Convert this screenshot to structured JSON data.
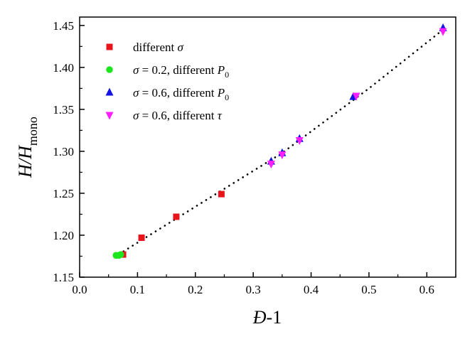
{
  "chart_data": {
    "type": "scatter",
    "xlabel": "Đ-1",
    "ylabel": "H/Hmono",
    "xlabel_parts": {
      "symbol": "Đ",
      "suffix": "-1"
    },
    "ylabel_parts": {
      "main": "H/H",
      "subscript": "mono"
    },
    "xlim": [
      0.0,
      0.65
    ],
    "ylim": [
      1.15,
      1.46
    ],
    "x_ticks": [
      "0.0",
      "0.1",
      "0.2",
      "0.3",
      "0.4",
      "0.5",
      "0.6"
    ],
    "y_ticks": [
      "1.15",
      "1.20",
      "1.25",
      "1.30",
      "1.35",
      "1.40",
      "1.45"
    ],
    "grid": false,
    "legend_position": "top-left",
    "series": [
      {
        "name": "different σ",
        "legend": {
          "text": "different ",
          "symbol": "σ",
          "sub": ""
        },
        "marker": "square",
        "color": "#e8141b",
        "points": [
          [
            0.075,
            1.177
          ],
          [
            0.107,
            1.197
          ],
          [
            0.167,
            1.222
          ],
          [
            0.245,
            1.249
          ]
        ]
      },
      {
        "name": "σ = 0.2, different P0",
        "legend": {
          "text": "σ = 0.2, different ",
          "symbol": "P",
          "sub": "0"
        },
        "marker": "circle",
        "color": "#1ee61e",
        "points": [
          [
            0.063,
            1.176
          ],
          [
            0.068,
            1.176
          ],
          [
            0.071,
            1.177
          ]
        ]
      },
      {
        "name": "σ = 0.6, different P0",
        "legend": {
          "text": "σ = 0.6, different ",
          "symbol": "P",
          "sub": "0"
        },
        "marker": "triangle-up",
        "color": "#1414e6",
        "points": [
          [
            0.331,
            1.288
          ],
          [
            0.35,
            1.298
          ],
          [
            0.38,
            1.315
          ],
          [
            0.473,
            1.365
          ],
          [
            0.628,
            1.447
          ]
        ]
      },
      {
        "name": "σ = 0.6, different τ",
        "legend": {
          "text": "σ = 0.6, different ",
          "symbol": "τ",
          "sub": ""
        },
        "marker": "triangle-down",
        "color": "#ff1eff",
        "points": [
          [
            0.331,
            1.285
          ],
          [
            0.35,
            1.296
          ],
          [
            0.38,
            1.313
          ],
          [
            0.478,
            1.366
          ],
          [
            0.628,
            1.443
          ]
        ]
      }
    ],
    "fit_line": {
      "style": "dotted",
      "color": "#000000",
      "x_range": [
        0.06,
        0.63
      ],
      "points": [
        [
          0.06,
          1.174
        ],
        [
          0.2,
          1.234
        ],
        [
          0.35,
          1.298
        ],
        [
          0.5,
          1.375
        ],
        [
          0.63,
          1.446
        ]
      ]
    }
  }
}
